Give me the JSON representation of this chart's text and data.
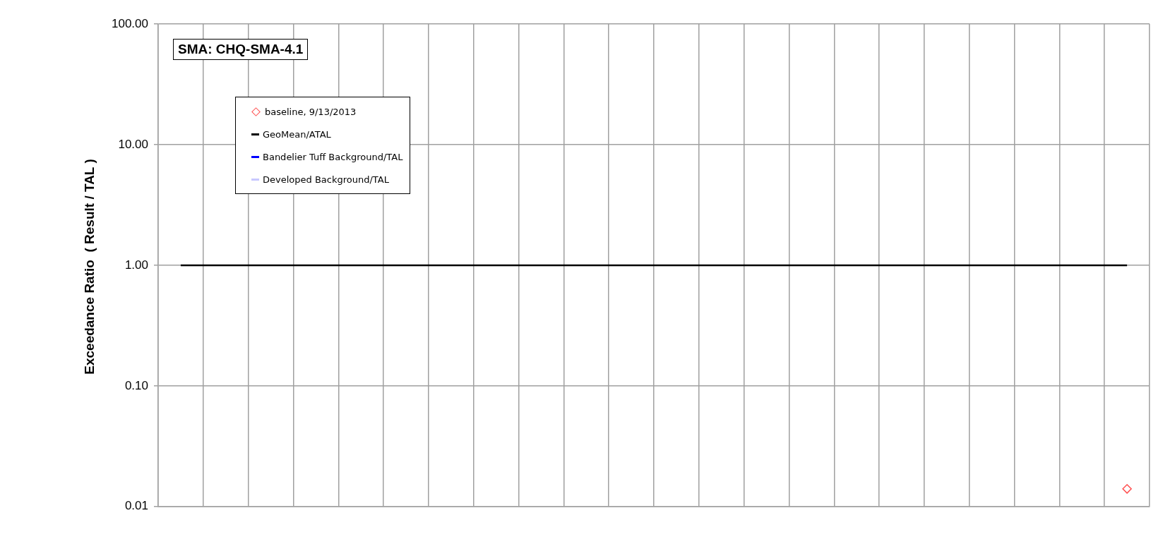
{
  "chart_data": {
    "type": "scatter",
    "title": "SMA: CHQ-SMA-4.1",
    "ylabel": "Exceedance Ratio  ( Result / TAL )",
    "categories": [
      null,
      null,
      null,
      null,
      null,
      null,
      null,
      null,
      null,
      null,
      null,
      null,
      null,
      null,
      null,
      null,
      null,
      null,
      null,
      null,
      null,
      null
    ],
    "series": [
      {
        "name": "baseline, 9/13/2013",
        "color": "#ff5050",
        "values": [
          null,
          null,
          null,
          null,
          null,
          null,
          null,
          null,
          null,
          null,
          null,
          null,
          null,
          null,
          null,
          null,
          null,
          null,
          null,
          null,
          null,
          0.014
        ]
      },
      {
        "name": "GeoMean/ATAL",
        "type": "line",
        "marker": "none",
        "color": "#000000",
        "values": [
          1,
          1,
          1,
          1,
          1,
          1,
          1,
          1,
          1,
          1,
          1,
          1,
          1,
          1,
          1,
          1,
          1,
          1,
          1,
          1,
          1,
          1
        ]
      },
      {
        "name": "Bandelier Tuff Background/TAL",
        "type": "line",
        "marker": "none",
        "color": "#0000ff",
        "values": [
          null,
          null,
          null,
          null,
          null,
          null,
          null,
          null,
          null,
          null,
          null,
          null,
          null,
          null,
          null,
          null,
          null,
          null,
          null,
          null,
          null,
          null
        ]
      },
      {
        "name": "Developed Background/TAL",
        "type": "line",
        "marker": "none",
        "color": "#c8c8ff",
        "values": [
          null,
          null,
          null,
          null,
          null,
          null,
          null,
          null,
          null,
          null,
          null,
          null,
          null,
          null,
          null,
          null,
          null,
          null,
          null,
          null,
          null,
          null
        ]
      }
    ],
    "log": "y",
    "ylim": [
      0.01,
      100
    ],
    "yticks": [
      {
        "value": 0.01,
        "label": "0.01"
      },
      {
        "value": 0.1,
        "label": "0.10"
      },
      {
        "value": 1,
        "label": "1.00"
      },
      {
        "value": 10,
        "label": "10.00"
      },
      {
        "value": 100,
        "label": "100.00"
      }
    ],
    "grid": true,
    "legend": "top left",
    "marker": "diamond"
  }
}
